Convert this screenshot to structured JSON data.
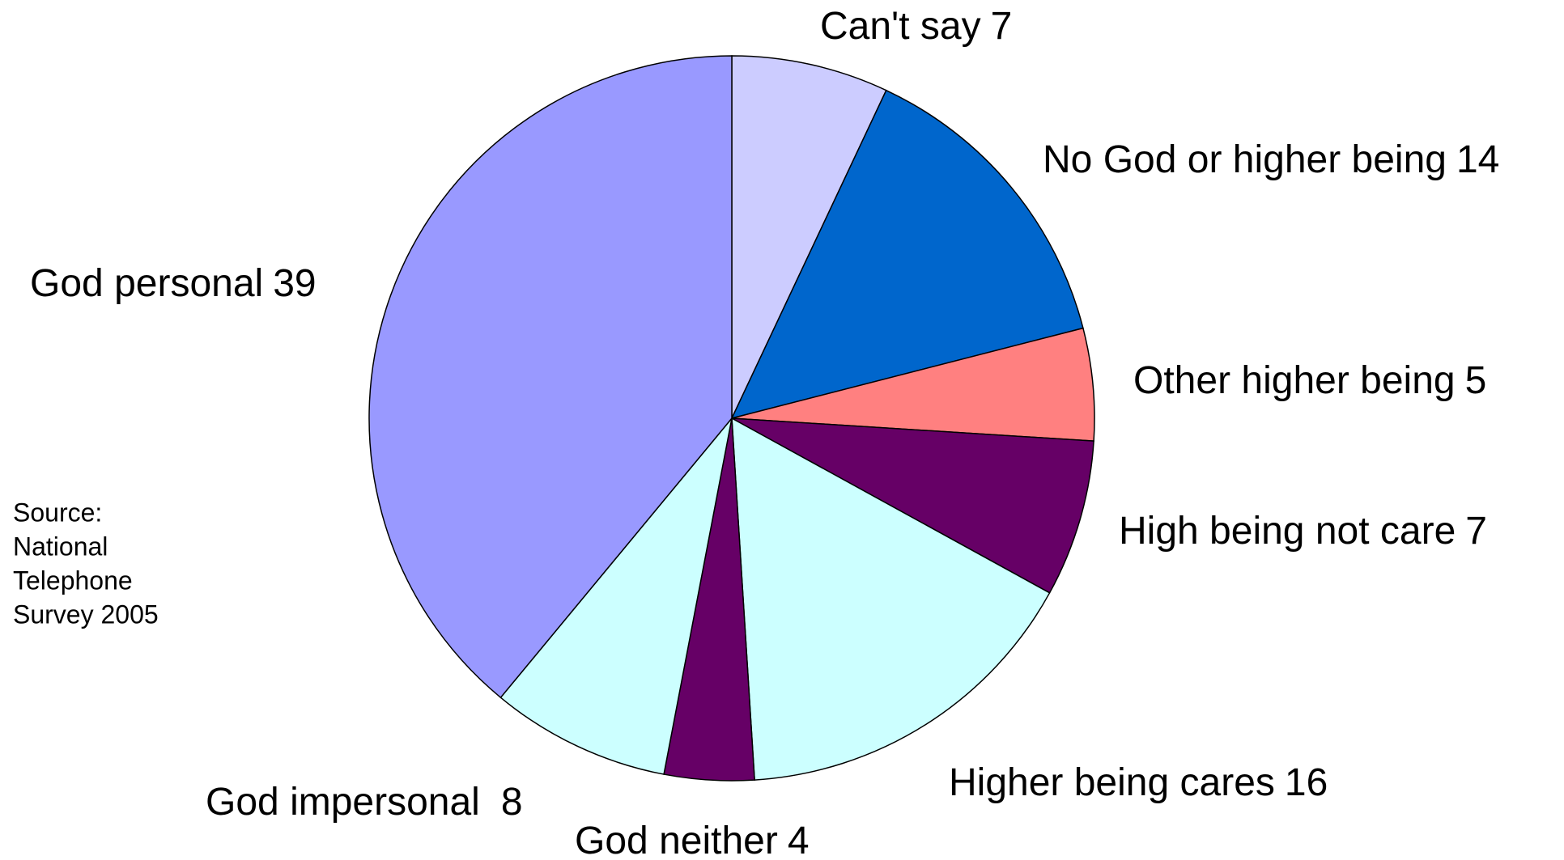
{
  "chart_data": {
    "type": "pie",
    "categories": [
      "Can't say",
      "No God or higher being",
      "Other higher being",
      "High being not care",
      "Higher being cares",
      "God neither",
      "God impersonal",
      "God personal"
    ],
    "values": [
      7,
      14,
      5,
      7,
      16,
      4,
      8,
      39
    ],
    "colors": [
      "#ccccff",
      "#0066cc",
      "#ff8080",
      "#660066",
      "#ccffff",
      "#660066",
      "#ccffff",
      "#9999ff"
    ],
    "source": [
      "Source:",
      "National",
      "Telephone",
      "Survey 2005"
    ]
  }
}
